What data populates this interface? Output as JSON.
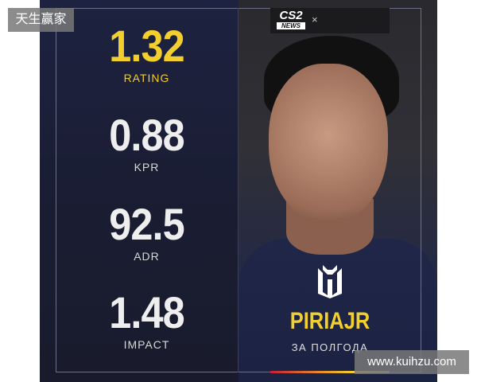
{
  "stats": [
    {
      "value": "1.32",
      "label": "RATING"
    },
    {
      "value": "0.88",
      "label": "KPR"
    },
    {
      "value": "92.5",
      "label": "ADR"
    },
    {
      "value": "1.48",
      "label": "IMPACT"
    }
  ],
  "header": {
    "logo_top": "CS2",
    "logo_bottom": "NEWS",
    "close": "×"
  },
  "player": {
    "name": "PIRIAJR",
    "period": "ЗА ПОЛГОДА"
  },
  "colors": {
    "accent": "#f2cf2c",
    "background": "#1d2240"
  },
  "watermarks": {
    "top_left": "天生赢家",
    "bottom_right": "www.kuihzu.com"
  }
}
